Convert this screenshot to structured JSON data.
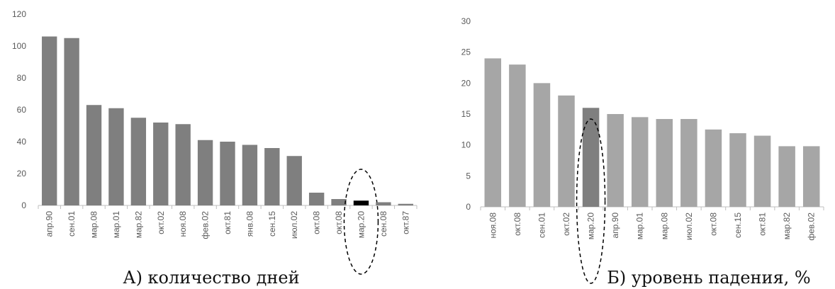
{
  "charts": [
    {
      "caption": "А) количество дней",
      "chart_data": {
        "type": "bar",
        "categories": [
          "апр.90",
          "сен.01",
          "мар.08",
          "мар.01",
          "мар.82",
          "окт.02",
          "ноя.08",
          "фев.02",
          "окт.81",
          "янв.08",
          "сен.15",
          "июл.02",
          "окт.08",
          "окт.08",
          "мар.20",
          "сен.08",
          "окт.87"
        ],
        "values": [
          106,
          105,
          63,
          61,
          55,
          52,
          51,
          41,
          40,
          38,
          36,
          31,
          8,
          4,
          3,
          2,
          1
        ],
        "highlight_category": "мар.20",
        "ylim": [
          0,
          120
        ],
        "yticks": [
          0,
          20,
          40,
          60,
          80,
          100,
          120
        ],
        "grid": false,
        "title": "",
        "xlabel": "",
        "ylabel": ""
      },
      "colors": {
        "bar": "#7f7f7f",
        "highlight": "#000000"
      }
    },
    {
      "caption": "Б) уровень падения, %",
      "chart_data": {
        "type": "bar",
        "categories": [
          "ноя.08",
          "окт.08",
          "сен.01",
          "окт.02",
          "мар.20",
          "апр.90",
          "мар.01",
          "мар.08",
          "июл.02",
          "окт.08",
          "сен.15",
          "окт.81",
          "мар.82",
          "фев.02"
        ],
        "values": [
          24,
          23,
          20,
          18,
          16,
          15,
          14.5,
          14.2,
          14.2,
          12.5,
          11.9,
          11.5,
          9.8,
          9.8
        ],
        "highlight_category": "мар.20",
        "ylim": [
          0,
          30
        ],
        "yticks": [
          0,
          5,
          10,
          15,
          20,
          25,
          30
        ],
        "grid": false,
        "title": "",
        "xlabel": "",
        "ylabel": ""
      },
      "colors": {
        "bar": "#a6a6a6",
        "highlight": "#7f7f7f"
      }
    }
  ],
  "colors": {
    "axis": "#bfbfbf",
    "ticks": "#595959",
    "ellipse": "#000000"
  }
}
